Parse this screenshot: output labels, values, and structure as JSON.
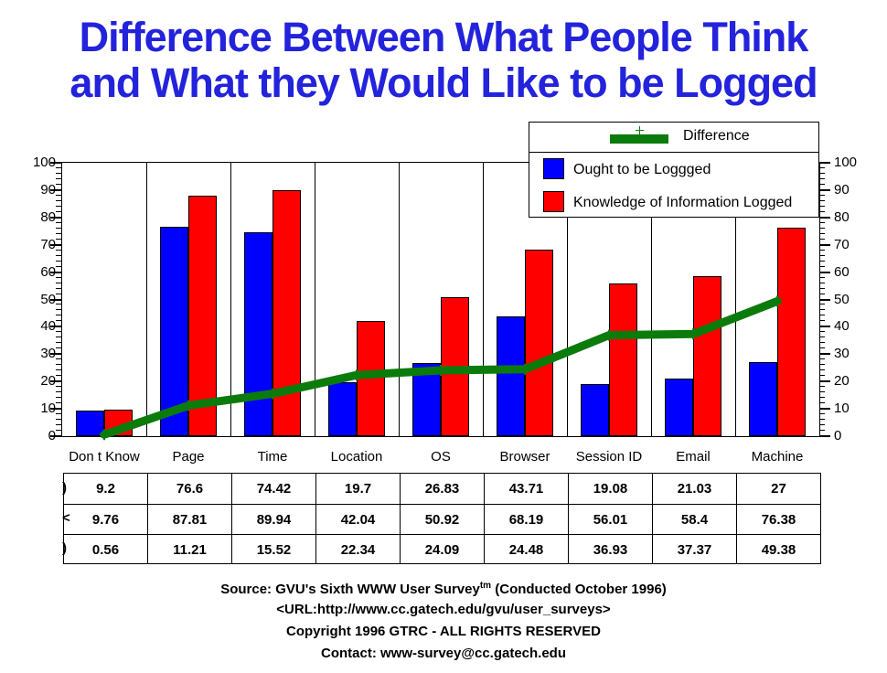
{
  "title": {
    "line1": "Difference Between What People Think",
    "line2": "and What they Would Like to be Logged"
  },
  "colors": {
    "title_blue": "#2323DC",
    "bar_blue": "#0000FF",
    "bar_red": "#FF0000",
    "line_green": "#0B7B0B",
    "axis_black": "#000000",
    "background": "#FFFFFF"
  },
  "legend": {
    "items": [
      {
        "label": "Difference",
        "swatch": "line",
        "color": "#0B7B0B",
        "marker": "plus-icon"
      },
      {
        "label": "Ought to be Loggged",
        "swatch": "square",
        "color": "#0000FF"
      },
      {
        "label": "Knowledge of Information Logged",
        "swatch": "square",
        "color": "#FF0000"
      }
    ]
  },
  "chart_data": {
    "type": "bar",
    "subtype": "grouped bars with overlaid difference line",
    "title": "Difference Between What People Think and What they Would Like to be Logged",
    "categories": [
      "Don t Know",
      "Page",
      "Time",
      "Location",
      "OS",
      "Browser",
      "Session ID",
      "Email",
      "Machine"
    ],
    "series": [
      {
        "name": "Ought to be Loggged",
        "type": "bar",
        "color": "#0000FF",
        "values": [
          9.2,
          76.6,
          74.42,
          19.7,
          26.83,
          43.71,
          19.08,
          21.03,
          27
        ]
      },
      {
        "name": "Knowledge of Information Logged",
        "type": "bar",
        "color": "#FF0000",
        "values": [
          9.76,
          87.81,
          89.94,
          42.04,
          50.92,
          68.19,
          56.01,
          58.4,
          76.38
        ]
      },
      {
        "name": "Difference",
        "type": "line",
        "color": "#0B7B0B",
        "marker": "plus",
        "values": [
          0.56,
          11.21,
          15.52,
          22.34,
          24.09,
          24.48,
          36.93,
          37.37,
          49.38
        ]
      }
    ],
    "xlabel": "",
    "ylabel": "",
    "ylim": [
      0,
      100
    ],
    "y_major_step": 10,
    "y_minor_step": 2,
    "y_tick_labels": [
      "0",
      "10",
      "20",
      "30",
      "40",
      "50",
      "60",
      "70",
      "80",
      "90",
      "100"
    ],
    "dual_axis": "identical 0-100 scale on left and right",
    "grid": "vertical category separator lines only",
    "legend_position": "top-right overlay box"
  },
  "table": {
    "rows": [
      {
        "marker": ")",
        "series": "Ought to be Loggged",
        "values": [
          "9.2",
          "76.6",
          "74.42",
          "19.7",
          "26.83",
          "43.71",
          "19.08",
          "21.03",
          "27"
        ]
      },
      {
        "marker": "<",
        "series": "Knowledge of Information Logged",
        "values": [
          "9.76",
          "87.81",
          "89.94",
          "42.04",
          "50.92",
          "68.19",
          "56.01",
          "58.4",
          "76.38"
        ]
      },
      {
        "marker": ")",
        "series": "Difference",
        "values": [
          "0.56",
          "11.21",
          "15.52",
          "22.34",
          "24.09",
          "24.48",
          "36.93",
          "37.37",
          "49.38"
        ]
      }
    ]
  },
  "footer": {
    "source_prefix": "Source: GVU's Sixth WWW User Survey",
    "source_sup": "tm",
    "source_suffix": " (Conducted October 1996)",
    "url_line": "<URL:http://www.cc.gatech.edu/gvu/user_surveys>",
    "copyright_line": "Copyright 1996 GTRC -  ALL RIGHTS RESERVED",
    "contact_line": "Contact: www-survey@cc.gatech.edu"
  }
}
